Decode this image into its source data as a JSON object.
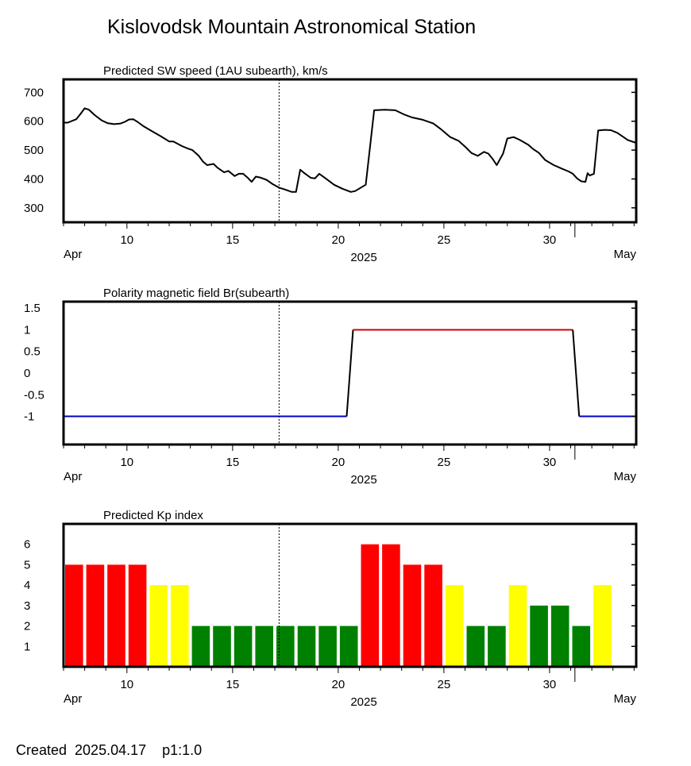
{
  "title": "Kislovodsk Mountain Astronomical Station",
  "footer": "Created  2025.04.17    p1:1.0",
  "current_day": 17.2,
  "x_axis": {
    "domain": [
      7.0,
      34.1
    ],
    "ticks": [
      10,
      15,
      20,
      25,
      30
    ],
    "month_ticks": [
      31.2
    ],
    "left_month": "Apr",
    "center_label": "2025",
    "right_month": "May"
  },
  "chart_data": [
    {
      "type": "line",
      "title": "Predicted SW speed (1AU subearth), km/s",
      "ylim": [
        250,
        745
      ],
      "yticks": [
        300,
        400,
        500,
        600,
        700
      ],
      "line_color": "#000000",
      "x": [
        7.0,
        7.2,
        7.6,
        7.8,
        8.0,
        8.2,
        8.5,
        8.8,
        9.1,
        9.4,
        9.7,
        9.9,
        10.1,
        10.3,
        10.5,
        10.8,
        11.2,
        11.6,
        12.0,
        12.2,
        12.6,
        12.9,
        13.1,
        13.4,
        13.6,
        13.8,
        14.1,
        14.3,
        14.6,
        14.8,
        15.1,
        15.3,
        15.5,
        15.7,
        15.9,
        16.1,
        16.3,
        16.6,
        16.9,
        17.2,
        17.5,
        17.8,
        18.0,
        18.2,
        18.4,
        18.7,
        18.9,
        19.1,
        19.4,
        19.8,
        20.2,
        20.6,
        20.8,
        21.3,
        21.7,
        22.2,
        22.7,
        23.1,
        23.5,
        24.0,
        24.5,
        24.9,
        25.3,
        25.7,
        26.0,
        26.3,
        26.6,
        26.9,
        27.1,
        27.3,
        27.5,
        27.8,
        28.0,
        28.3,
        28.6,
        29.0,
        29.2,
        29.5,
        29.8,
        30.2,
        30.6,
        30.9,
        31.1,
        31.3,
        31.5,
        31.7,
        31.8,
        31.9,
        32.1,
        32.3,
        32.6,
        32.9,
        33.2,
        33.5,
        33.7,
        34.1
      ],
      "y": [
        595,
        595,
        607,
        625,
        645,
        640,
        620,
        603,
        593,
        590,
        592,
        598,
        606,
        607,
        598,
        582,
        565,
        548,
        530,
        530,
        514,
        505,
        500,
        480,
        460,
        448,
        452,
        438,
        423,
        428,
        410,
        418,
        418,
        405,
        390,
        408,
        405,
        397,
        382,
        370,
        363,
        355,
        355,
        432,
        420,
        404,
        402,
        418,
        402,
        380,
        366,
        355,
        358,
        380,
        638,
        640,
        638,
        624,
        613,
        605,
        592,
        570,
        545,
        532,
        512,
        490,
        480,
        494,
        488,
        470,
        448,
        488,
        540,
        545,
        535,
        518,
        505,
        490,
        465,
        448,
        435,
        426,
        418,
        402,
        392,
        390,
        420,
        412,
        418,
        568,
        570,
        569,
        560,
        545,
        535,
        525
      ]
    },
    {
      "type": "line",
      "title": "Polarity magnetic field  Br(subearth)",
      "ylim": [
        -1.65,
        1.65
      ],
      "yticks": [
        -1,
        -0.5,
        0,
        0.5,
        1,
        1.5
      ],
      "ytick_labels": [
        "-1",
        "-0.5",
        "0",
        "0.5",
        "1",
        "1.5"
      ],
      "negative_color": "#0000c8",
      "positive_color": "#d00000",
      "x": [
        7.0,
        20.4,
        20.7,
        31.1,
        31.4,
        34.1
      ],
      "y": [
        -1,
        -1,
        1,
        1,
        -1,
        -1
      ]
    },
    {
      "type": "bar",
      "title": "Predicted Kp index",
      "ylim": [
        0,
        7.0
      ],
      "yticks": [
        1,
        2,
        3,
        4,
        5,
        6
      ],
      "x": [
        7.5,
        8.5,
        9.5,
        10.5,
        11.5,
        12.5,
        13.5,
        14.5,
        15.5,
        16.5,
        17.5,
        18.5,
        19.5,
        20.5,
        21.5,
        22.5,
        23.5,
        24.5,
        25.5,
        26.5,
        27.5,
        28.5,
        29.5,
        30.5,
        31.5,
        32.5
      ],
      "values": [
        5,
        5,
        5,
        5,
        4,
        4,
        2,
        2,
        2,
        2,
        2,
        2,
        2,
        2,
        6,
        6,
        5,
        5,
        4,
        2,
        2,
        4,
        3,
        3,
        2,
        4
      ],
      "colors": {
        "red": "#ff0000",
        "yellow": "#ffff00",
        "green": "#008000"
      }
    }
  ]
}
